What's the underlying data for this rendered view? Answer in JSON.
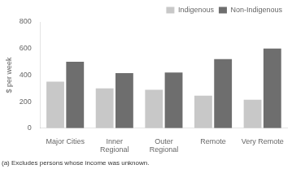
{
  "chart_data": {
    "type": "bar",
    "categories": [
      "Major Cities",
      "Inner\nRegional",
      "Outer\nRegional",
      "Remote",
      "Very Remote"
    ],
    "series": [
      {
        "name": "Indigenous",
        "color": "#c8c8c8",
        "values": [
          350,
          300,
          290,
          245,
          215
        ]
      },
      {
        "name": "Non-Indigenous",
        "color": "#6e6e6e",
        "values": [
          500,
          415,
          420,
          520,
          600
        ]
      }
    ],
    "ylabel": "$ per week",
    "ylim": [
      0,
      800
    ],
    "yticks": [
      0,
      200,
      400,
      600,
      800
    ],
    "grid": false,
    "legend": "upper right",
    "footnote": "(a) Excludes persons whose income was unknown."
  }
}
